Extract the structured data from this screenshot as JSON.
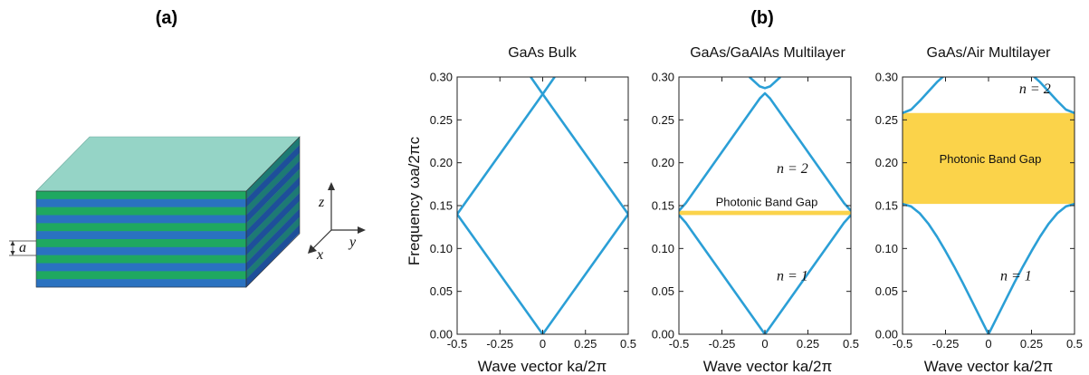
{
  "figure": {
    "label_a": "(a)",
    "label_b": "(b)",
    "stack_labels": {
      "a": "a",
      "x": "x",
      "y": "y",
      "z": "z"
    }
  },
  "colors": {
    "band": "#2b9fd6",
    "gap": "#fbd34a",
    "top_face": "#95d4c6",
    "green": "#1fa860",
    "blue": "#2a72c0",
    "side_dark": "#1d7a74",
    "side_blue": "#1e4f9a"
  },
  "chart_data": [
    {
      "type": "line",
      "title": "GaAs Bulk",
      "xlabel": "Wave vector  ka/2π",
      "ylabel": "Frequency  ωa/2πc",
      "xlim": [
        -0.5,
        0.5
      ],
      "ylim": [
        0,
        0.3
      ],
      "xticks": [
        "-0.5",
        "-0.25",
        "0",
        "0.25",
        "0.5"
      ],
      "yticks": [
        "0.00",
        "0.05",
        "0.10",
        "0.15",
        "0.20",
        "0.25",
        "0.30"
      ],
      "series": [
        {
          "x": [
            -0.5,
            0,
            0.5
          ],
          "y": [
            0.14,
            0.0,
            0.14
          ]
        },
        {
          "x": [
            -0.5,
            0,
            0.5
          ],
          "y": [
            0.14,
            0.28,
            0.14
          ]
        },
        {
          "x": [
            -0.07,
            0.0,
            0.07
          ],
          "y": [
            0.3,
            0.28,
            0.3
          ]
        }
      ]
    },
    {
      "type": "line",
      "title": "GaAs/GaAlAs Multilayer",
      "xlabel": "Wave vector  ka/2π",
      "xlim": [
        -0.5,
        0.5
      ],
      "ylim": [
        0,
        0.3
      ],
      "xticks": [
        "-0.5",
        "-0.25",
        "0",
        "0.25",
        "0.5"
      ],
      "yticks": [
        "0.00",
        "0.05",
        "0.10",
        "0.15",
        "0.20",
        "0.25",
        "0.30"
      ],
      "band_gap": {
        "from": 0.139,
        "to": 0.144,
        "label": "Photonic Band Gap"
      },
      "band_labels": [
        {
          "text": "n = 2",
          "x": 0.16,
          "y": 0.188
        },
        {
          "text": "n = 1",
          "x": 0.16,
          "y": 0.063
        }
      ],
      "series": [
        {
          "x": [
            -0.5,
            -0.46,
            0,
            0.46,
            0.5
          ],
          "y": [
            0.139,
            0.13,
            0.0,
            0.13,
            0.139
          ]
        },
        {
          "x": [
            -0.5,
            -0.46,
            -0.03,
            0,
            0.03,
            0.46,
            0.5
          ],
          "y": [
            0.144,
            0.153,
            0.275,
            0.281,
            0.275,
            0.153,
            0.144
          ]
        },
        {
          "x": [
            -0.09,
            -0.03,
            0,
            0.03,
            0.09
          ],
          "y": [
            0.3,
            0.289,
            0.287,
            0.289,
            0.3
          ]
        }
      ]
    },
    {
      "type": "line",
      "title": "GaAs/Air Multilayer",
      "xlabel": "Wave vector  ka/2π",
      "xlim": [
        -0.5,
        0.5
      ],
      "ylim": [
        0,
        0.3
      ],
      "xticks": [
        "-0.5",
        "-0.25",
        "0",
        "0.25",
        "0.5"
      ],
      "yticks": [
        "0.00",
        "0.05",
        "0.10",
        "0.15",
        "0.20",
        "0.25",
        "0.30"
      ],
      "band_gap": {
        "from": 0.152,
        "to": 0.258,
        "label": "Photonic Band Gap"
      },
      "band_labels": [
        {
          "text": "n = 2",
          "x": 0.27,
          "y": 0.281
        },
        {
          "text": "n = 1",
          "x": 0.16,
          "y": 0.063
        }
      ],
      "series": [
        {
          "x": [
            -0.5,
            -0.45,
            -0.4,
            -0.35,
            -0.3,
            -0.25,
            -0.2,
            -0.15,
            -0.1,
            -0.05,
            0,
            0.05,
            0.1,
            0.15,
            0.2,
            0.25,
            0.3,
            0.35,
            0.4,
            0.45,
            0.5
          ],
          "y": [
            0.152,
            0.149,
            0.141,
            0.129,
            0.114,
            0.097,
            0.079,
            0.06,
            0.04,
            0.02,
            0.0,
            0.02,
            0.04,
            0.06,
            0.079,
            0.097,
            0.114,
            0.129,
            0.141,
            0.149,
            0.152
          ]
        },
        {
          "x": [
            -0.5,
            -0.45,
            -0.4,
            -0.35,
            -0.3,
            -0.25
          ],
          "y": [
            0.258,
            0.262,
            0.272,
            0.283,
            0.294,
            0.303
          ]
        },
        {
          "x": [
            0.25,
            0.3,
            0.35,
            0.4,
            0.45,
            0.5
          ],
          "y": [
            0.303,
            0.294,
            0.283,
            0.272,
            0.262,
            0.258
          ]
        }
      ]
    }
  ]
}
